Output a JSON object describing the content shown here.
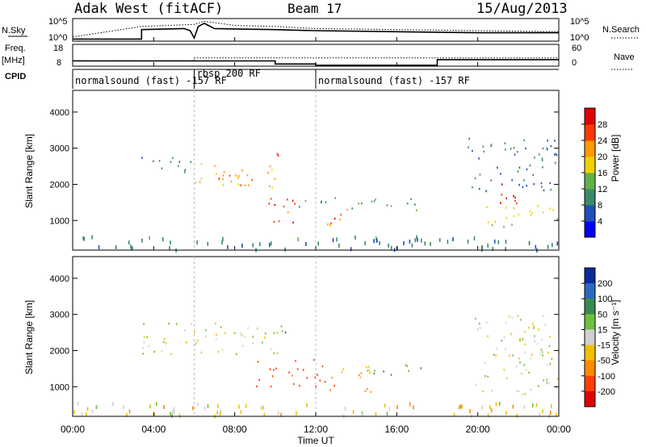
{
  "header": {
    "station": "Adak West (fitACF)",
    "beam": "Beam 17",
    "date": "15/Aug/2013"
  },
  "nsky_panel": {
    "left_label": "N.Sky",
    "right_label": "N.Search",
    "left_ticks": [
      "10^5",
      "10^0"
    ],
    "right_ticks": [
      "10^5",
      "10^0"
    ]
  },
  "freq_panel": {
    "left_label_top": "Freq.",
    "left_label_unit": "[MHz]",
    "right_label": "Nave",
    "left_ticks": [
      "18",
      "8"
    ],
    "right_ticks": [
      "60",
      "0"
    ]
  },
  "cpid_panel": {
    "label": "CPID",
    "segments": [
      {
        "text": "normalsound (fast) -157 RF",
        "start": 0,
        "end": 6
      },
      {
        "text": "rbsp 200 RF",
        "start": 6,
        "end": 12
      },
      {
        "text": "normalsound (fast) -157 RF",
        "start": 12,
        "end": 24
      }
    ]
  },
  "x_axis": {
    "label": "Time UT",
    "ticks": [
      "00:00",
      "04:00",
      "08:00",
      "12:00",
      "16:00",
      "20:00",
      "00:00"
    ]
  },
  "power_panel": {
    "ylabel": "Slant Range [km]",
    "yticks": [
      "1000",
      "2000",
      "3000",
      "4000"
    ],
    "colorbar_label": "Power [dB]",
    "colorbar_ticks": [
      "4",
      "8",
      "12",
      "16",
      "20",
      "24",
      "28"
    ],
    "colorbar_colors": [
      "#0000ff",
      "#1f4fb8",
      "#3a8a6a",
      "#63b04a",
      "#f0d000",
      "#ff9a00",
      "#ff3a00",
      "#e00000"
    ]
  },
  "velocity_panel": {
    "ylabel": "Slant Range [km]",
    "yticks": [
      "1000",
      "2000",
      "3000",
      "4000"
    ],
    "colorbar_label": "Velocity [m s⁻¹]",
    "colorbar_ticks": [
      "200",
      "100",
      "50",
      "15",
      "-15",
      "-50",
      "-100",
      "-200"
    ],
    "colorbar_colors": [
      "#0b2a9a",
      "#2b6ac0",
      "#3a8a50",
      "#70c040",
      "#d0d0d0",
      "#f0c000",
      "#ff8a00",
      "#ff4000",
      "#e00000"
    ]
  },
  "chart_data": [
    {
      "type": "line",
      "name_left": "N.Sky",
      "name_right": "N.Search",
      "x_range": [
        0,
        24
      ],
      "nsky": {
        "x": [
          0,
          3.4,
          3.4,
          5.5,
          5.8,
          6.0,
          6.2,
          6.5,
          7,
          8,
          10,
          12,
          16,
          20,
          24
        ],
        "y": [
          0.1,
          0.1,
          0.55,
          0.6,
          0.5,
          0.15,
          0.7,
          0.85,
          0.6,
          0.58,
          0.55,
          0.5,
          0.45,
          0.4,
          0.4
        ]
      },
      "nsearch": {
        "x": [
          0,
          3.4,
          6,
          6.5,
          8,
          10,
          12,
          16,
          20,
          24
        ],
        "y": [
          0.2,
          0.7,
          0.8,
          0.95,
          0.75,
          0.7,
          0.6,
          0.55,
          0.5,
          0.45
        ]
      }
    },
    {
      "type": "line",
      "name_left": "Freq. [MHz]",
      "name_right": "Nave",
      "x_range": [
        0,
        24
      ],
      "freq": {
        "x": [
          0,
          10,
          10,
          12,
          12,
          18,
          18,
          24
        ],
        "y": [
          10.4,
          10.4,
          9.0,
          9.0,
          8.4,
          8.4,
          11.0,
          11.0
        ]
      },
      "nave": {
        "x": [
          0,
          6,
          6,
          24
        ],
        "y": [
          15,
          15,
          23,
          23
        ]
      }
    },
    {
      "type": "heatmap",
      "quantity": "Power [dB]",
      "x_range": [
        0,
        24
      ],
      "y_range": [
        180,
        4600
      ],
      "z_range": [
        0,
        30
      ],
      "patches": [
        {
          "t0": 3.4,
          "t1": 6.0,
          "r0": 2300,
          "r1": 2800,
          "z": 8
        },
        {
          "t0": 6.0,
          "t1": 10.2,
          "r0": 1900,
          "r1": 2600,
          "z": 19
        },
        {
          "t0": 7.2,
          "t1": 9.4,
          "r0": 2000,
          "r1": 2300,
          "z": 24
        },
        {
          "t0": 9.6,
          "t1": 11.0,
          "r0": 800,
          "r1": 1700,
          "z": 25
        },
        {
          "t0": 11.0,
          "t1": 17.2,
          "r0": 1300,
          "r1": 1650,
          "z": 10
        },
        {
          "t0": 12.5,
          "t1": 14.2,
          "r0": 850,
          "r1": 1350,
          "z": 24
        },
        {
          "t0": 10.0,
          "t1": 10.5,
          "r0": 2500,
          "r1": 2900,
          "z": 26
        },
        {
          "t0": 20.0,
          "t1": 24.0,
          "r0": 850,
          "r1": 1450,
          "z": 16
        },
        {
          "t0": 20.5,
          "t1": 22.0,
          "r0": 1500,
          "r1": 2100,
          "z": 26
        },
        {
          "t0": 19.5,
          "t1": 24.0,
          "r0": 1800,
          "r1": 3300,
          "z": 8
        },
        {
          "t0": 0.0,
          "t1": 24.0,
          "r0": 200,
          "r1": 600,
          "z": 9
        }
      ]
    },
    {
      "type": "heatmap",
      "quantity": "Velocity [m s⁻¹]",
      "x_range": [
        0,
        24
      ],
      "y_range": [
        180,
        4600
      ],
      "z_range": [
        -250,
        250
      ],
      "patches": [
        {
          "t0": 3.4,
          "t1": 10.5,
          "r0": 1900,
          "r1": 2800,
          "z": 0
        },
        {
          "t0": 9.0,
          "t1": 12.5,
          "r0": 1000,
          "r1": 1800,
          "z": -140
        },
        {
          "t0": 12.5,
          "t1": 14.8,
          "r0": 850,
          "r1": 1700,
          "z": -60
        },
        {
          "t0": 14.8,
          "t1": 17.2,
          "r0": 1300,
          "r1": 1700,
          "z": 60
        },
        {
          "t0": 10.0,
          "t1": 10.5,
          "r0": 2500,
          "r1": 2800,
          "z": 200
        },
        {
          "t0": 19.8,
          "t1": 24.0,
          "r0": 800,
          "r1": 3000,
          "z": 0
        },
        {
          "t0": 0.0,
          "t1": 24.0,
          "r0": 200,
          "r1": 600,
          "z": -20
        }
      ]
    }
  ]
}
